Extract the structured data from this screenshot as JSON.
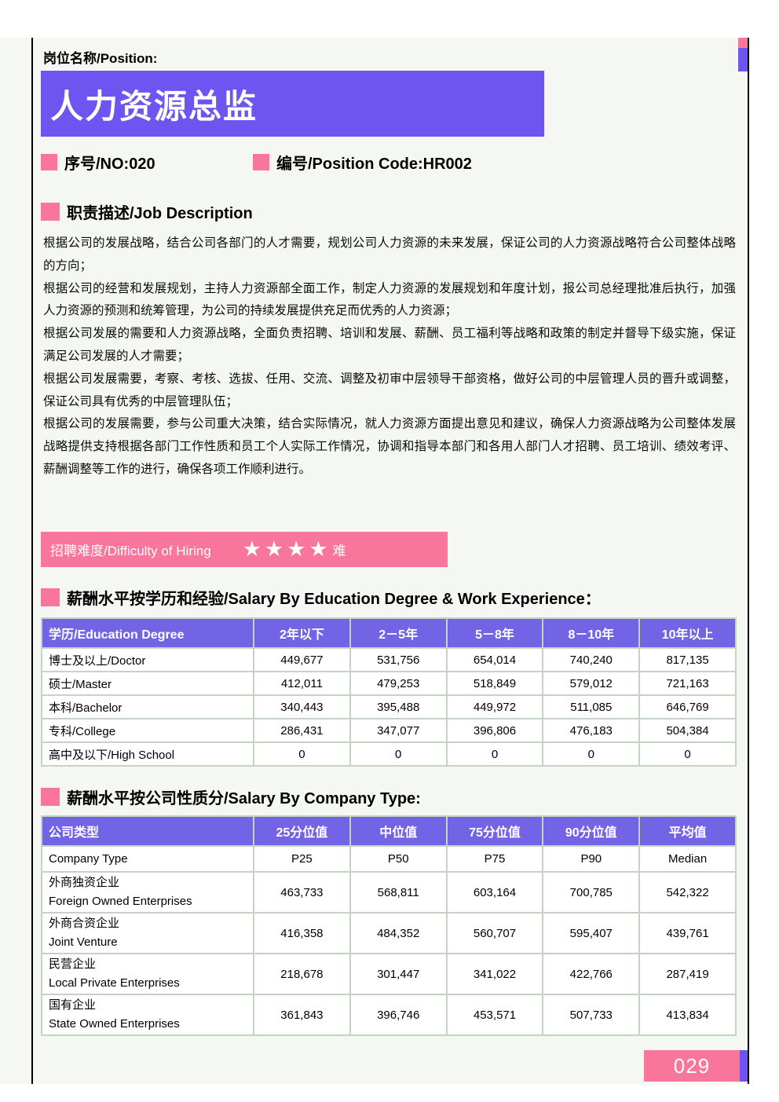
{
  "colors": {
    "accent_purple": "#6e55f2",
    "accent_pink": "#f8759b",
    "table_header_purple": "#7264e4",
    "paper_background": "#f5f7f2",
    "table_border": "#c3d4c3"
  },
  "header": {
    "position_label": "岗位名称/Position:",
    "title": "人力资源总监",
    "no_label": "序号/NO:020",
    "code_label": "编号/Position Code:HR002"
  },
  "job_description": {
    "header": "职责描述/Job Description",
    "paragraphs": [
      "根据公司的发展战略，结合公司各部门的人才需要，规划公司人力资源的未来发展，保证公司的人力资源战略符合公司整体战略的方向；",
      "根据公司的经营和发展规划，主持人力资源部全面工作，制定人力资源的发展规划和年度计划，报公司总经理批准后执行，加强人力资源的预测和统筹管理，为公司的持续发展提供充足而优秀的人力资源；",
      "根据公司发展的需要和人力资源战略，全面负责招聘、培训和发展、薪酬、员工福利等战略和政策的制定并督导下级实施，保证满足公司发展的人才需要；",
      "根据公司发展需要，考察、考核、选拔、任用、交流、调整及初审中层领导干部资格，做好公司的中层管理人员的晋升或调整，保证公司具有优秀的中层管理队伍；",
      "根据公司的发展需要，参与公司重大决策，结合实际情况，就人力资源方面提出意见和建议，确保人力资源战略为公司整体发展战略提供支持根据各部门工作性质和员工个人实际工作情况，协调和指导本部门和各用人部门人才招聘、员工培训、绩效考评、薪酬调整等工作的进行，确保各项工作顺利进行。"
    ]
  },
  "difficulty": {
    "label": "招聘难度/Difficulty of Hiring",
    "stars": "★★★★",
    "suffix": "难"
  },
  "salary_by_education": {
    "header": "薪酬水平按学历和经验/Salary By Education Degree & Work Experience：",
    "columns": [
      "学历/Education Degree",
      "2年以下",
      "2－5年",
      "5－8年",
      "8－10年",
      "10年以上"
    ],
    "rows": [
      {
        "label": "博士及以上/Doctor",
        "values": [
          "449,677",
          "531,756",
          "654,014",
          "740,240",
          "817,135"
        ]
      },
      {
        "label": "硕士/Master",
        "values": [
          "412,011",
          "479,253",
          "518,849",
          "579,012",
          "721,163"
        ]
      },
      {
        "label": "本科/Bachelor",
        "values": [
          "340,443",
          "395,488",
          "449,972",
          "511,085",
          "646,769"
        ]
      },
      {
        "label": "专科/College",
        "values": [
          "286,431",
          "347,077",
          "396,806",
          "476,183",
          "504,384"
        ]
      },
      {
        "label": "高中及以下/High School",
        "values": [
          "0",
          "0",
          "0",
          "0",
          "0"
        ]
      }
    ]
  },
  "salary_by_company": {
    "header": "薪酬水平按公司性质分/Salary By Company Type:",
    "columns": [
      "公司类型",
      "25分位值",
      "中位值",
      "75分位值",
      "90分位值",
      "平均值"
    ],
    "subheader": {
      "label": "Company Type",
      "values": [
        "P25",
        "P50",
        "P75",
        "P90",
        "Median"
      ]
    },
    "rows": [
      {
        "zh": "外商独资企业",
        "en": "Foreign Owned Enterprises",
        "values": [
          "463,733",
          "568,811",
          "603,164",
          "700,785",
          "542,322"
        ]
      },
      {
        "zh": "外商合资企业",
        "en": "Joint Venture",
        "values": [
          "416,358",
          "484,352",
          "560,707",
          "595,407",
          "439,761"
        ]
      },
      {
        "zh": "民营企业",
        "en": "Local Private Enterprises",
        "values": [
          "218,678",
          "301,447",
          "341,022",
          "422,766",
          "287,419"
        ]
      },
      {
        "zh": "国有企业",
        "en": "State Owned Enterprises",
        "values": [
          "361,843",
          "396,746",
          "453,571",
          "507,733",
          "413,834"
        ]
      }
    ]
  },
  "footer": {
    "page_number": "029"
  }
}
